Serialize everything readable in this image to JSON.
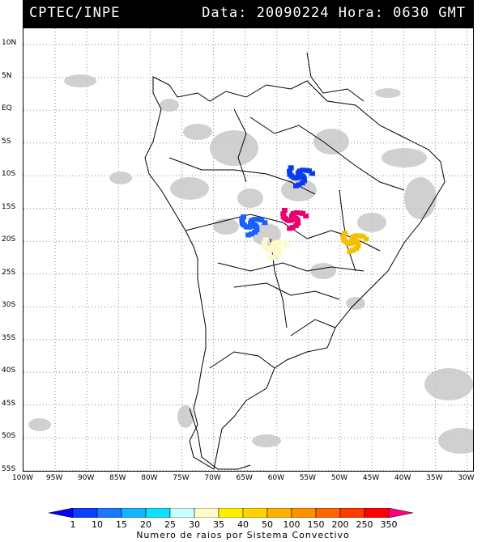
{
  "header": {
    "source": "CPTEC/INPE",
    "datetime": "Data: 20090224 Hora: 0630 GMT"
  },
  "axes": {
    "lat_labels": [
      "10N",
      "5N",
      "EQ",
      "5S",
      "10S",
      "15S",
      "20S",
      "25S",
      "30S",
      "35S",
      "40S",
      "45S",
      "50S",
      "55S"
    ],
    "lon_labels": [
      "100W",
      "95W",
      "90W",
      "85W",
      "80W",
      "75W",
      "70W",
      "65W",
      "60W",
      "55W",
      "50W",
      "45W",
      "40W",
      "35W",
      "30W"
    ]
  },
  "legend": {
    "ticks": [
      "1",
      "10",
      "15",
      "20",
      "25",
      "30",
      "35",
      "40",
      "50",
      "100",
      "150",
      "200",
      "250",
      "350"
    ],
    "colors": [
      "#0000ff",
      "#0a40ff",
      "#1a78ff",
      "#14b4ff",
      "#10e0ff",
      "#c8ffff",
      "#fffac8",
      "#fff000",
      "#ffd400",
      "#ffb000",
      "#ff9000",
      "#ff6400",
      "#ff3a00",
      "#ff0000",
      "#ff0080"
    ],
    "caption": "Numero de raios por Sistema Convectivo"
  },
  "convective_systems": [
    {
      "lon": -56.5,
      "lat": -10.0,
      "count_class": "1-10",
      "color": "#0a3cf0"
    },
    {
      "lon": -64.0,
      "lat": -17.5,
      "count_class": "10-15",
      "color": "#1a60ff"
    },
    {
      "lon": -57.5,
      "lat": -16.5,
      "count_class": "350+",
      "color": "#e8006e"
    },
    {
      "lon": -60.5,
      "lat": -21.0,
      "count_class": "35-40",
      "color": "#fff8c8"
    },
    {
      "lon": -48.0,
      "lat": -20.0,
      "count_class": "50-100",
      "color": "#f6c000"
    }
  ]
}
